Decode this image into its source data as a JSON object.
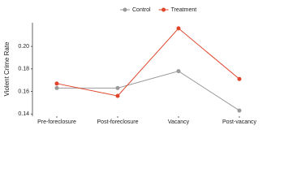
{
  "chart_data": {
    "type": "line",
    "y_label": "Violent Crime Rate",
    "categories": [
      "Pre-foreclosure",
      "Post-foreclosure",
      "Vacancy",
      "Post-vacancy"
    ],
    "series": [
      {
        "name": "Control",
        "color": "#999999",
        "values": [
          0.163,
          0.163,
          0.178,
          0.143
        ]
      },
      {
        "name": "Treatment",
        "color": "#e0452b",
        "values": [
          0.167,
          0.156,
          0.216,
          0.171
        ]
      }
    ],
    "ylim": [
      0.138,
      0.221
    ],
    "yticks": [
      0.14,
      0.16,
      0.18,
      {
        "value": 0.2,
        "label": "0.20"
      }
    ],
    "legend": "top",
    "grid": false
  }
}
